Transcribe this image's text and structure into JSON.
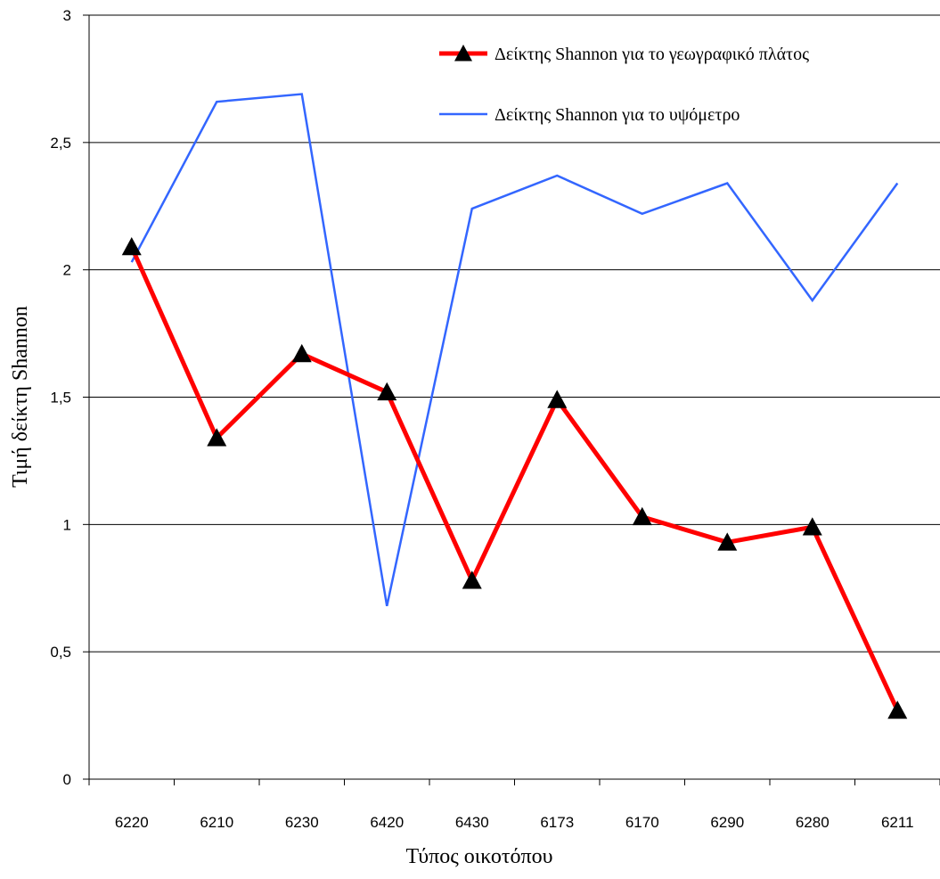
{
  "chart_data": {
    "type": "line",
    "xlabel": "Τύπος οικοτόπου",
    "ylabel": "Τιμή δείκτη Shannon",
    "categories": [
      "6220",
      "6210",
      "6230",
      "6420",
      "6430",
      "6173",
      "6170",
      "6290",
      "6280",
      "6211"
    ],
    "ylim": [
      0,
      3
    ],
    "yticks": [
      0,
      0.5,
      1,
      1.5,
      2,
      2.5,
      3
    ],
    "ytick_labels": [
      "0",
      "0,5",
      "1",
      "1,5",
      "2",
      "2,5",
      "3"
    ],
    "grid": true,
    "legend_position": "top-right",
    "series": [
      {
        "name": "Δείκτης Shannon για το γεωγραφικό πλάτος",
        "values": [
          2.09,
          1.34,
          1.67,
          1.52,
          0.78,
          1.49,
          1.03,
          0.93,
          0.99,
          0.27
        ],
        "color": "#ff0000",
        "marker": "triangle"
      },
      {
        "name": "Δείκτης Shannon για το υψόμετρο",
        "values": [
          2.03,
          2.66,
          2.69,
          0.68,
          2.24,
          2.37,
          2.22,
          2.34,
          1.88,
          2.34
        ],
        "color": "#3366ff",
        "marker": "none"
      }
    ]
  }
}
